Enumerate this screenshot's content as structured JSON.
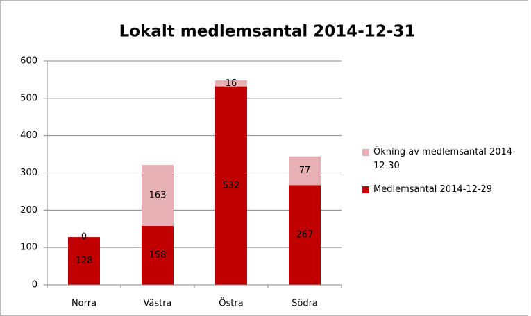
{
  "chart_data": {
    "type": "stacked_bar",
    "title": "Lokalt medlemsantal  2014-12-31",
    "categories": [
      "Norra",
      "Västra",
      "Östra",
      "Södra"
    ],
    "series": [
      {
        "name": "Medlemsantal 2014-12-29",
        "color": "#c00000",
        "values": [
          128,
          158,
          532,
          267
        ]
      },
      {
        "name": "Ökning av medlemsantal 2014-12-30",
        "color": "#e6b0b4",
        "values": [
          0,
          163,
          16,
          77
        ]
      }
    ],
    "ylim": [
      0,
      600
    ],
    "yticks": [
      0,
      100,
      200,
      300,
      400,
      500,
      600
    ],
    "grid": true,
    "legend": "right"
  }
}
